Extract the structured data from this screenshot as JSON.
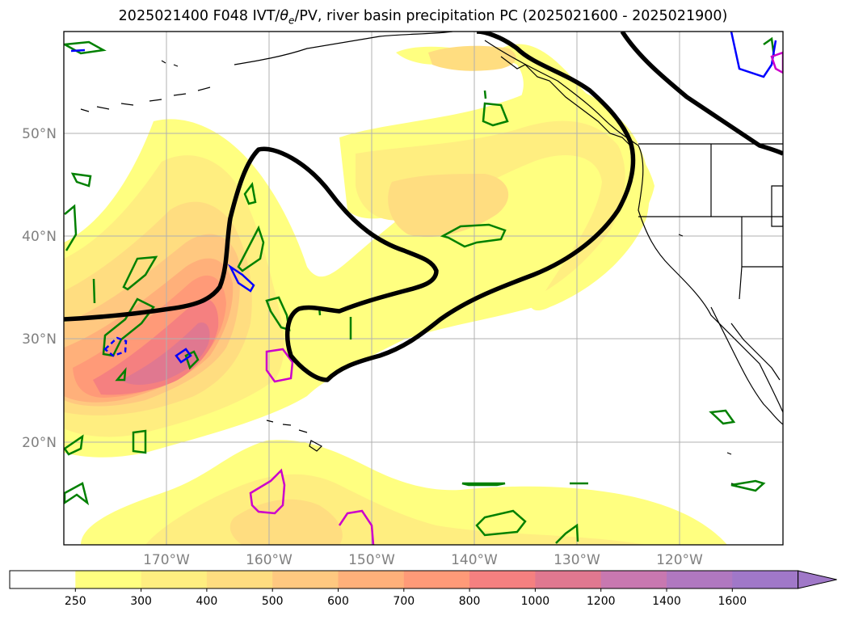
{
  "title": {
    "prefix": "2025021400 F048 IVT/",
    "theta": "θ",
    "theta_sub": "e",
    "suffix": "/PV, river basin precipitation PC (2025021600 - 2025021900)"
  },
  "map": {
    "projection": "cylindrical",
    "lon_range": [
      -180,
      -110
    ],
    "lat_range": [
      10,
      60
    ],
    "lon_ticks": [
      "170°W",
      "160°W",
      "150°W",
      "140°W",
      "130°W",
      "120°W"
    ],
    "lat_ticks": [
      "50°N",
      "40°N",
      "30°N",
      "20°N"
    ],
    "grid": true
  },
  "colorbar": {
    "labels": [
      "250",
      "300",
      "400",
      "500",
      "600",
      "700",
      "800",
      "1000",
      "1200",
      "1400",
      "1600"
    ],
    "colors": [
      "#ffffff",
      "#ffff80",
      "#ffee80",
      "#ffdd80",
      "#ffc880",
      "#ffb07a",
      "#ff9a78",
      "#f58080",
      "#e07890",
      "#c878b0",
      "#b078c0",
      "#a078c8"
    ],
    "extend": "max"
  },
  "layers": {
    "ivt_fill_colors": [
      "#ffff80",
      "#ffee80",
      "#ffdd80",
      "#ffc880",
      "#ffb07a",
      "#ff9a78",
      "#f58080",
      "#e07890"
    ],
    "pv_contour_color": "#000000",
    "theta_e_green": "#008000",
    "theta_e_blue": "#0000ff",
    "theta_e_magenta": "#cc00cc",
    "coastline_color": "#000000"
  }
}
